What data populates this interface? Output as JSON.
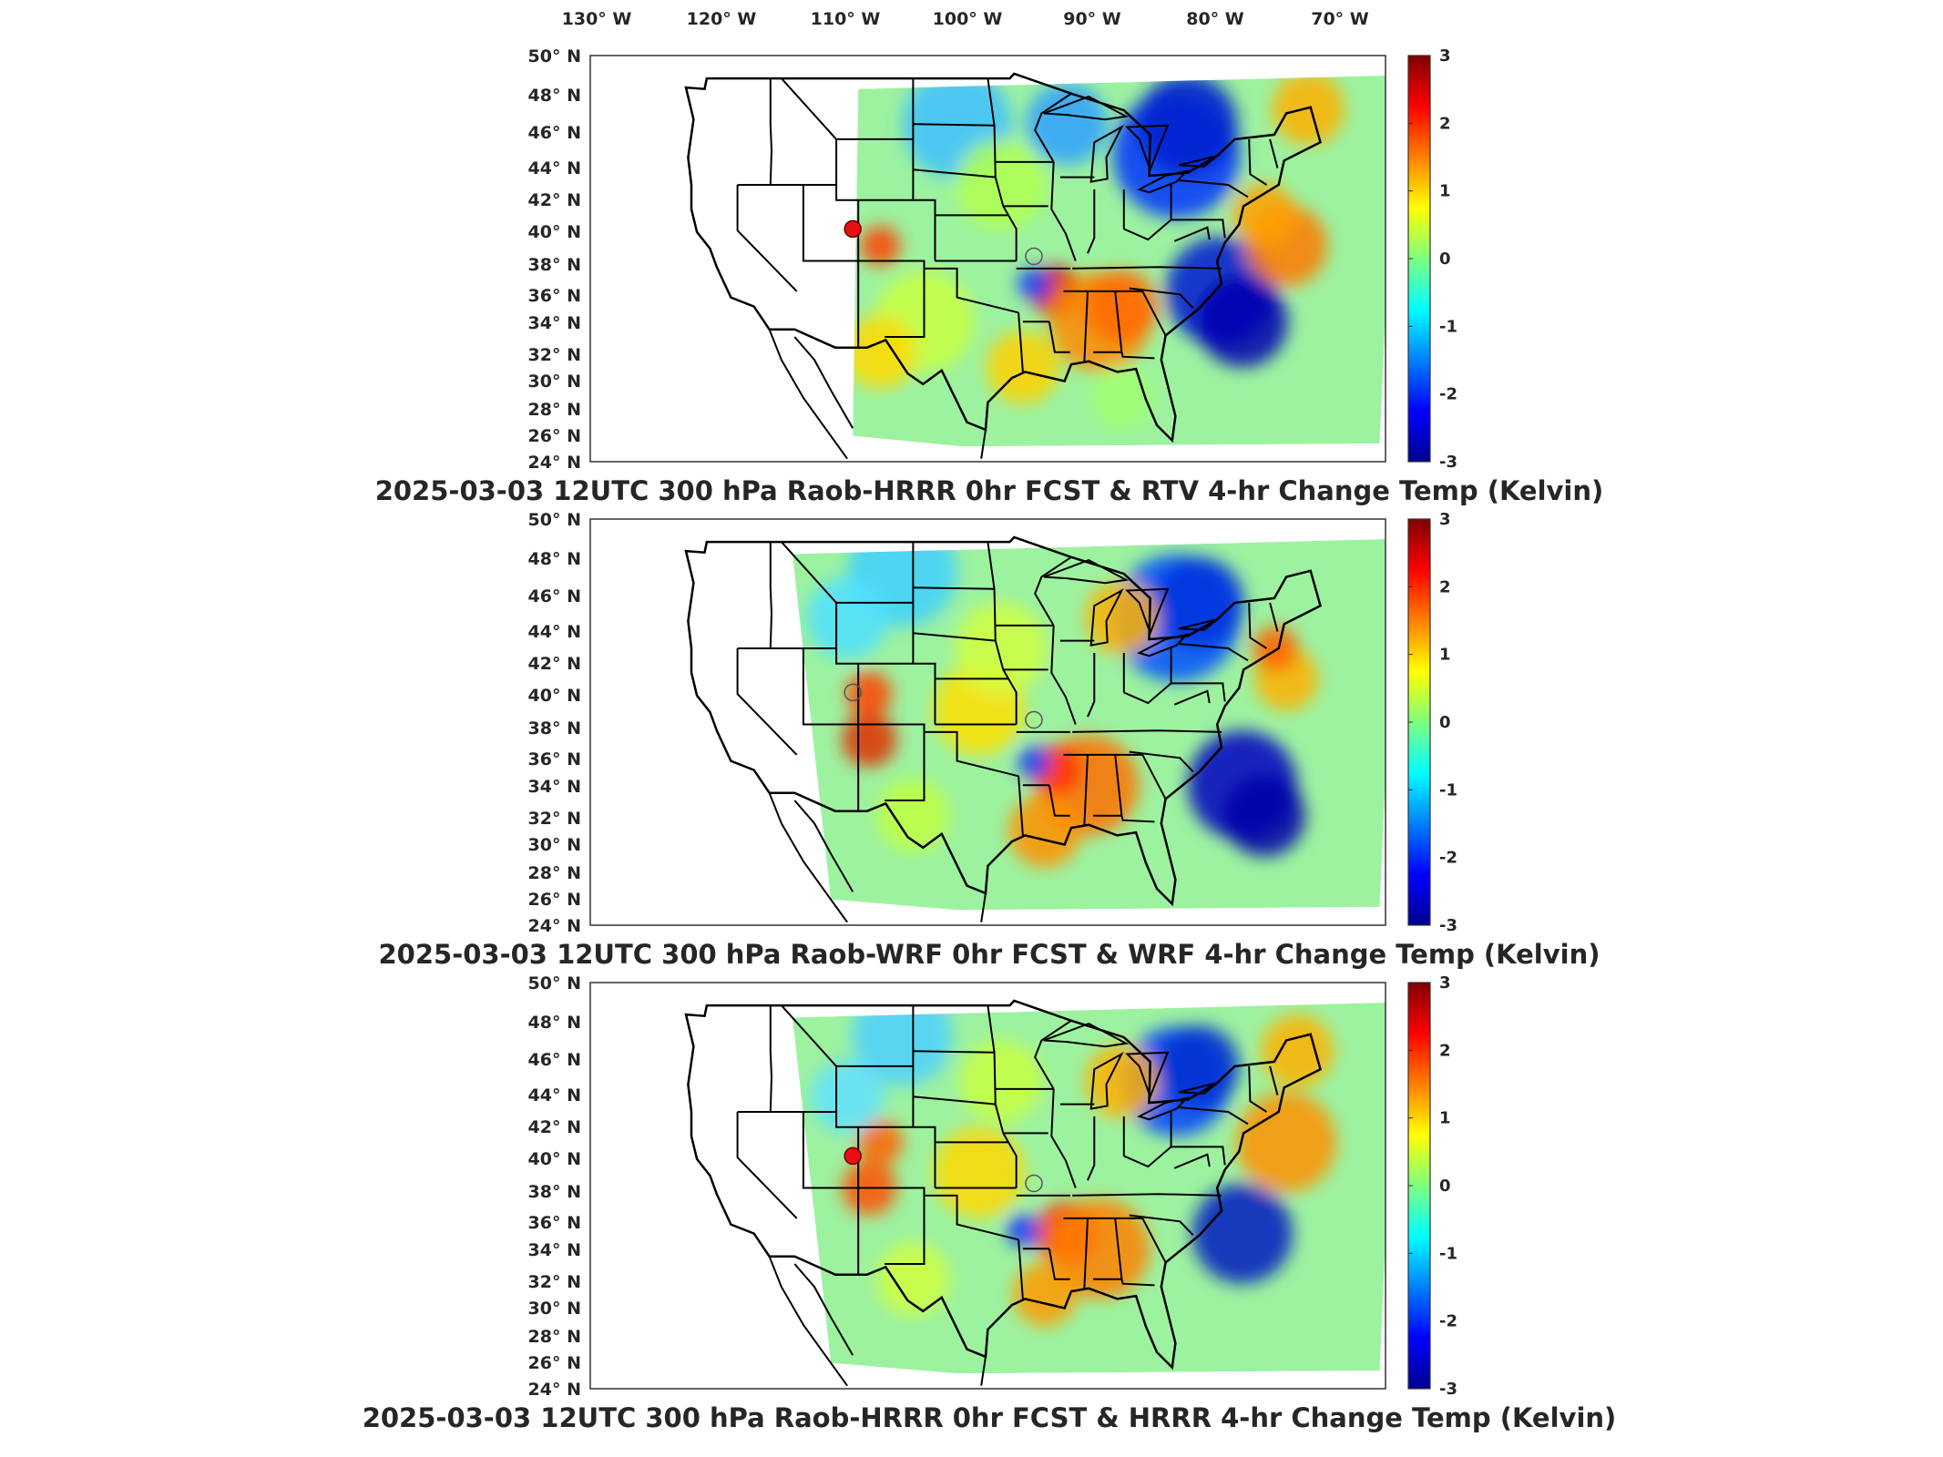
{
  "figure": {
    "lon_labels": [
      "130° W",
      "120° W",
      "110° W",
      "100° W",
      "90° W",
      "80° W",
      "70° W"
    ],
    "lat_labels": [
      "50° N",
      "48° N",
      "46° N",
      "44° N",
      "42° N",
      "40° N",
      "38° N",
      "36° N",
      "34° N",
      "32° N",
      "30° N",
      "28° N",
      "26° N",
      "24° N"
    ],
    "colorbar": {
      "ticks": [
        "3",
        "2",
        "1",
        "0",
        "-1",
        "-2",
        "-3"
      ],
      "range": [
        -3,
        3
      ],
      "colormap": "jet",
      "colors": [
        "#00008f",
        "#0000ff",
        "#00ffff",
        "#ffff00",
        "#ff0000",
        "#800000"
      ]
    },
    "panels": [
      {
        "title": "2025-03-03 12UTC 300 hPa Raob-HRRR 0hr FCST & RTV 4-hr Change Temp (Kelvin)",
        "markers": [
          {
            "lon": -109.5,
            "lat": 39.1,
            "kind": "filled-red"
          },
          {
            "lon": -93.0,
            "lat": 37.3,
            "kind": "hollow"
          }
        ]
      },
      {
        "title": "2025-03-03 12UTC 300 hPa Raob-WRF 0hr FCST & WRF 4-hr Change Temp (Kelvin)",
        "markers": [
          {
            "lon": -109.5,
            "lat": 39.1,
            "kind": "hollow"
          },
          {
            "lon": -93.0,
            "lat": 37.3,
            "kind": "hollow"
          }
        ]
      },
      {
        "title": "2025-03-03 12UTC 300 hPa Raob-HRRR 0hr FCST & HRRR 4-hr Change Temp (Kelvin)",
        "markers": [
          {
            "lon": -109.5,
            "lat": 39.1,
            "kind": "filled-red"
          },
          {
            "lon": -93.0,
            "lat": 37.3,
            "kind": "hollow"
          }
        ]
      }
    ]
  }
}
